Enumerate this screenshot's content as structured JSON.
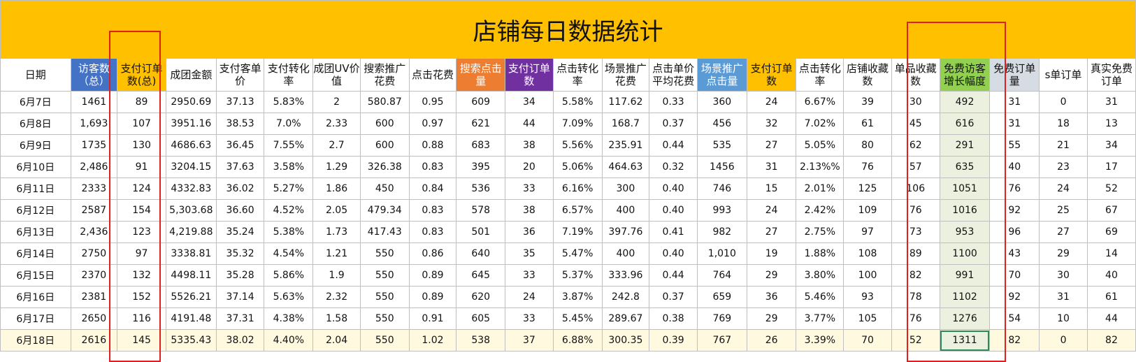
{
  "title": "店铺每日数据统计",
  "headers": [
    "日期",
    "访客数（总）",
    "支付订单数(总)",
    "成团金额",
    "支付客单价",
    "支付转化率",
    "成团UV价值",
    "搜索推广花费",
    "点击花费",
    "搜索点击量",
    "支付订单数",
    "点击转化率",
    "场景推广花费",
    "点击单价平均花费",
    "场景推广点击量",
    "支付订单数",
    "点击转化率",
    "店铺收藏数",
    "单品收藏数",
    "免费访客增长幅度",
    "免费订单量",
    "s单订单",
    "真实免费订单"
  ],
  "rows": [
    [
      "6月7日",
      "1461",
      "89",
      "2950.69",
      "37.13",
      "5.83%",
      "2",
      "580.87",
      "0.95",
      "609",
      "34",
      "5.58%",
      "117.62",
      "0.33",
      "360",
      "24",
      "6.67%",
      "39",
      "30",
      "492",
      "31",
      "0",
      "31"
    ],
    [
      "6月8日",
      "1,693",
      "107",
      "3951.16",
      "38.53",
      "7.0%",
      "2.33",
      "600",
      "0.97",
      "621",
      "44",
      "7.09%",
      "168.7",
      "0.37",
      "456",
      "32",
      "7.02%",
      "61",
      "45",
      "616",
      "31",
      "18",
      "13"
    ],
    [
      "6月9日",
      "1735",
      "130",
      "4686.63",
      "36.45",
      "7.55%",
      "2.7",
      "600",
      "0.88",
      "683",
      "38",
      "5.56%",
      "235.91",
      "0.44",
      "535",
      "27",
      "5.05%",
      "80",
      "62",
      "291",
      "55",
      "21",
      "34"
    ],
    [
      "6月10日",
      "2,486",
      "91",
      "3204.15",
      "37.63",
      "3.58%",
      "1.29",
      "326.38",
      "0.83",
      "395",
      "20",
      "5.06%",
      "464.63",
      "0.32",
      "1456",
      "31",
      "2.13%%",
      "76",
      "57",
      "635",
      "40",
      "23",
      "17"
    ],
    [
      "6月11日",
      "2333",
      "124",
      "4332.83",
      "36.02",
      "5.27%",
      "1.86",
      "450",
      "0.84",
      "536",
      "33",
      "6.16%",
      "300",
      "0.40",
      "746",
      "15",
      "2.01%",
      "125",
      "106",
      "1051",
      "76",
      "24",
      "52"
    ],
    [
      "6月12日",
      "2587",
      "154",
      "5,303.68",
      "36.60",
      "4.52%",
      "2.05",
      "479.34",
      "0.83",
      "578",
      "38",
      "6.57%",
      "400",
      "0.40",
      "993",
      "24",
      "2.42%",
      "109",
      "76",
      "1016",
      "92",
      "25",
      "67"
    ],
    [
      "6月13日",
      "2,436",
      "123",
      "4,219.88",
      "35.24",
      "5.38%",
      "1.73",
      "417.43",
      "0.83",
      "501",
      "36",
      "7.19%",
      "397.76",
      "0.41",
      "982",
      "27",
      "2.75%",
      "97",
      "73",
      "953",
      "96",
      "27",
      "69"
    ],
    [
      "6月14日",
      "2750",
      "97",
      "3338.81",
      "35.32",
      "4.54%",
      "1.21",
      "550",
      "0.86",
      "640",
      "35",
      "5.47%",
      "400",
      "0.40",
      "1,010",
      "19",
      "1.88%",
      "108",
      "89",
      "1100",
      "43",
      "29",
      "14"
    ],
    [
      "6月15日",
      "2370",
      "132",
      "4498.11",
      "35.28",
      "5.86%",
      "1.9",
      "550",
      "0.89",
      "645",
      "33",
      "5.37%",
      "333.96",
      "0.44",
      "764",
      "29",
      "3.80%",
      "100",
      "82",
      "991",
      "70",
      "30",
      "40"
    ],
    [
      "6月16日",
      "2381",
      "152",
      "5526.21",
      "37.14",
      "5.63%",
      "2.32",
      "550",
      "0.89",
      "620",
      "24",
      "3.87%",
      "242.8",
      "0.37",
      "659",
      "36",
      "5.46%",
      "93",
      "78",
      "1102",
      "92",
      "31",
      "61"
    ],
    [
      "6月17日",
      "2650",
      "116",
      "4191.48",
      "37.31",
      "4.38%",
      "1.58",
      "550",
      "0.91",
      "605",
      "33",
      "5.45%",
      "289.67",
      "0.38",
      "769",
      "29",
      "3.77%",
      "105",
      "76",
      "1276",
      "54",
      "10",
      "44"
    ],
    [
      "6月18日",
      "2616",
      "145",
      "5335.43",
      "38.02",
      "4.40%",
      "2.04",
      "550",
      "1.02",
      "538",
      "37",
      "6.88%",
      "300.35",
      "0.39",
      "767",
      "26",
      "3.39%",
      "70",
      "52",
      "1311",
      "82",
      "0",
      "82"
    ]
  ],
  "colors": {
    "title_bg": "#ffc000",
    "visitor_header": "#4472c4",
    "orders_header": "#ffc000",
    "search_click_header": "#ed7d31",
    "search_orders_header": "#7030a0",
    "scene_click_header": "#5b9bd5",
    "free_growth_header": "#92d050",
    "free_orders_header": "#d6dce4",
    "highlight_box": "#e02020"
  }
}
